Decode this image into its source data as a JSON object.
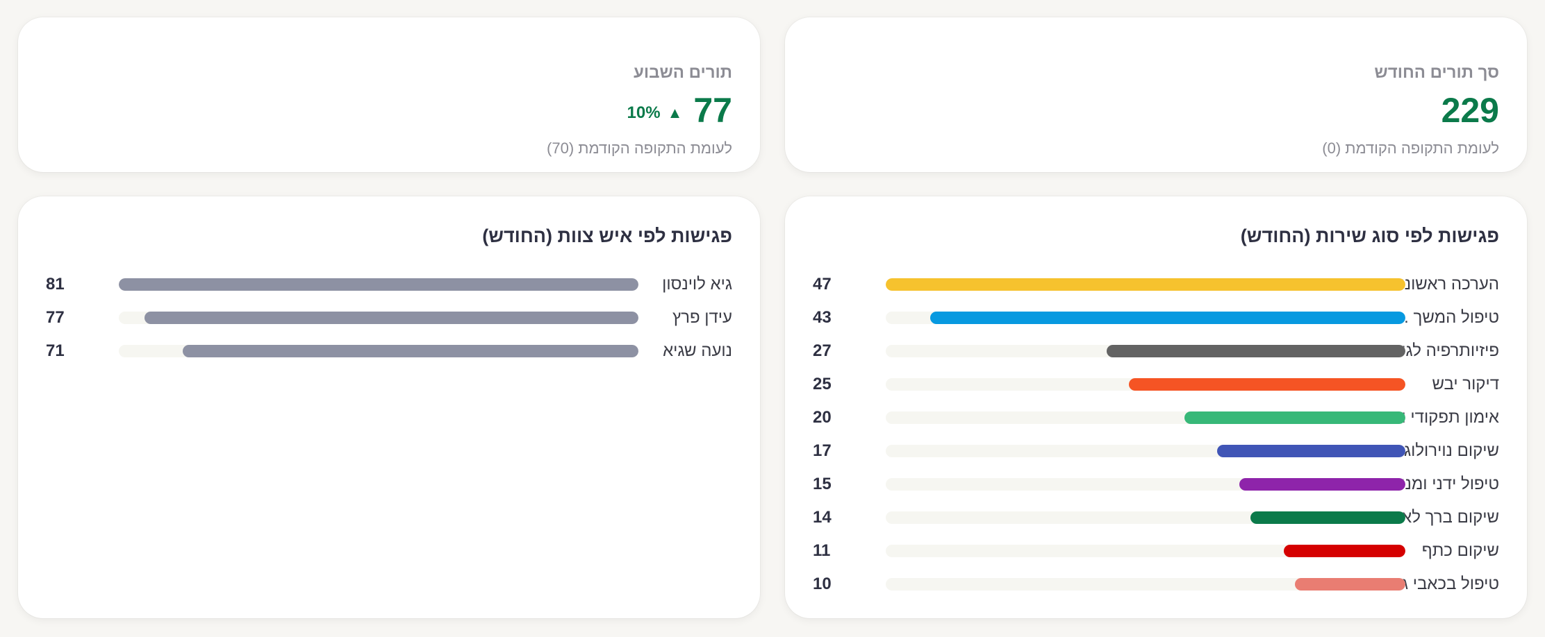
{
  "kpis": {
    "month_total": {
      "label": "סך תורים החודש",
      "value": "229",
      "sub": "לעומת התקופה הקודמת (0)"
    },
    "week": {
      "label": "תורים השבוע",
      "value": "77",
      "delta": "10%",
      "delta_arrow": "▲",
      "sub": "לעומת התקופה הקודמת (70)"
    }
  },
  "service_panel": {
    "title": "פגישות לפי סוג שירות (החודש)",
    "max": 47,
    "rows": [
      {
        "label": "הערכה ראשונית",
        "value": 47,
        "color": "#f6c22e"
      },
      {
        "label": "טיפול המשך ...",
        "value": 43,
        "color": "#0799e0"
      },
      {
        "label": "פיזיותרפיה לגי...",
        "value": 27,
        "color": "#636363"
      },
      {
        "label": "דיקור יבש",
        "value": 25,
        "color": "#f55424"
      },
      {
        "label": "אימון תפקודי ו...",
        "value": 20,
        "color": "#37b878"
      },
      {
        "label": "שיקום נוירולוגי",
        "value": 17,
        "color": "#4055b6"
      },
      {
        "label": "טיפול ידני ומני...",
        "value": 15,
        "color": "#8e24aa"
      },
      {
        "label": "שיקום ברך לא...",
        "value": 14,
        "color": "#0b7a4a"
      },
      {
        "label": "שיקום כתף",
        "value": 11,
        "color": "#d50000"
      },
      {
        "label": "טיפול בכאבי ג...",
        "value": 10,
        "color": "#e97d72"
      }
    ]
  },
  "staff_panel": {
    "title": "פגישות לפי איש צוות (החודש)",
    "max": 81,
    "rows": [
      {
        "label": "גיא לוינסון",
        "value": 81,
        "color": "#8d91a3"
      },
      {
        "label": "עידן פרץ",
        "value": 77,
        "color": "#8d91a3"
      },
      {
        "label": "נועה שגיא",
        "value": 71,
        "color": "#8d91a3"
      }
    ]
  }
}
